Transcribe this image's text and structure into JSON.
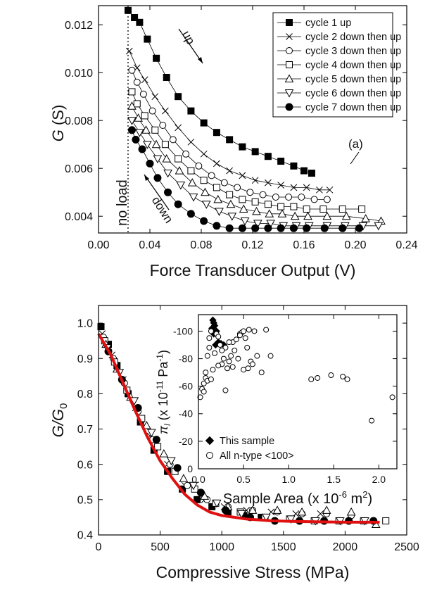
{
  "chart_data": [
    {
      "type": "scatter",
      "panel_label": "(a)",
      "xlabel": "Force Transducer Output (V)",
      "ylabel_main": "G",
      "ylabel_unit": " (S)",
      "xlim": [
        0.0,
        0.24
      ],
      "ylim": [
        0.0033,
        0.0128
      ],
      "xticks": [
        "0.00",
        "0.04",
        "0.08",
        "0.12",
        "0.16",
        "0.20",
        "0.24"
      ],
      "yticks": [
        "0.004",
        "0.006",
        "0.008",
        "0.010",
        "0.012"
      ],
      "xtick_values": [
        0.0,
        0.04,
        0.08,
        0.12,
        0.16,
        0.2,
        0.24
      ],
      "ytick_values": [
        0.004,
        0.006,
        0.008,
        0.01,
        0.012
      ],
      "annotations": {
        "up": "up",
        "down": "down",
        "no_load": "no load"
      },
      "no_load_x": 0.023,
      "legend": "top-right",
      "series": [
        {
          "name": "cycle 1 up",
          "marker": "square-filled",
          "x": [
            0.023,
            0.028,
            0.032,
            0.038,
            0.045,
            0.053,
            0.062,
            0.072,
            0.082,
            0.092,
            0.102,
            0.112,
            0.122,
            0.132,
            0.142,
            0.152,
            0.16,
            0.166
          ],
          "y": [
            0.0126,
            0.0123,
            0.0121,
            0.0114,
            0.0106,
            0.0098,
            0.009,
            0.0084,
            0.0079,
            0.0075,
            0.0072,
            0.0069,
            0.0067,
            0.0065,
            0.0063,
            0.0061,
            0.0059,
            0.0058
          ]
        },
        {
          "name": "cycle 2 down then up",
          "marker": "x",
          "x": [
            0.024,
            0.03,
            0.036,
            0.044,
            0.052,
            0.062,
            0.072,
            0.082,
            0.092,
            0.102,
            0.112,
            0.122,
            0.132,
            0.142,
            0.152,
            0.162,
            0.172,
            0.18
          ],
          "y": [
            0.0109,
            0.0102,
            0.0097,
            0.009,
            0.0084,
            0.0077,
            0.0071,
            0.0066,
            0.0062,
            0.0059,
            0.0057,
            0.0055,
            0.0054,
            0.0053,
            0.0052,
            0.0052,
            0.0051,
            0.0051
          ]
        },
        {
          "name": "cycle 3 down then up",
          "marker": "circle-open",
          "x": [
            0.026,
            0.03,
            0.035,
            0.042,
            0.05,
            0.058,
            0.068,
            0.078,
            0.088,
            0.098,
            0.108,
            0.118,
            0.128,
            0.138,
            0.148,
            0.158,
            0.168,
            0.178
          ],
          "y": [
            0.0101,
            0.0096,
            0.0091,
            0.0084,
            0.0078,
            0.0072,
            0.0066,
            0.0061,
            0.0057,
            0.0054,
            0.0052,
            0.005,
            0.0049,
            0.0048,
            0.0048,
            0.0048,
            0.0047,
            0.0047
          ]
        },
        {
          "name": "cycle 4 down then up",
          "marker": "square-open",
          "x": [
            0.026,
            0.03,
            0.036,
            0.044,
            0.052,
            0.062,
            0.072,
            0.082,
            0.092,
            0.102,
            0.112,
            0.122,
            0.132,
            0.142,
            0.152,
            0.162,
            0.175,
            0.19,
            0.205
          ],
          "y": [
            0.0092,
            0.0087,
            0.0082,
            0.0076,
            0.007,
            0.0064,
            0.0059,
            0.0055,
            0.0052,
            0.0049,
            0.0047,
            0.0046,
            0.0045,
            0.0044,
            0.0044,
            0.0043,
            0.0043,
            0.0043,
            0.0043
          ]
        },
        {
          "name": "cycle 5 down then up",
          "marker": "triangle-up-open",
          "x": [
            0.026,
            0.031,
            0.037,
            0.045,
            0.053,
            0.063,
            0.073,
            0.083,
            0.093,
            0.103,
            0.113,
            0.123,
            0.133,
            0.143,
            0.153,
            0.163,
            0.178,
            0.193,
            0.208,
            0.22
          ],
          "y": [
            0.0086,
            0.0081,
            0.0076,
            0.007,
            0.0064,
            0.0059,
            0.0054,
            0.005,
            0.0047,
            0.0045,
            0.0043,
            0.0042,
            0.0041,
            0.0041,
            0.004,
            0.004,
            0.004,
            0.004,
            0.0039,
            0.0038
          ]
        },
        {
          "name": "cycle 6 down then up",
          "marker": "triangle-down-open",
          "x": [
            0.026,
            0.032,
            0.038,
            0.046,
            0.054,
            0.064,
            0.074,
            0.084,
            0.094,
            0.104,
            0.114,
            0.124,
            0.134,
            0.144,
            0.154,
            0.164,
            0.178,
            0.192,
            0.206,
            0.218
          ],
          "y": [
            0.008,
            0.0075,
            0.007,
            0.0064,
            0.0058,
            0.0053,
            0.0048,
            0.0045,
            0.0042,
            0.004,
            0.0038,
            0.0037,
            0.0037,
            0.0036,
            0.0036,
            0.0036,
            0.0036,
            0.0036,
            0.0036,
            0.0036
          ]
        },
        {
          "name": "cycle 7 down then up",
          "marker": "circle-filled",
          "x": [
            0.026,
            0.029,
            0.034,
            0.04,
            0.046,
            0.054,
            0.062,
            0.072,
            0.082,
            0.092,
            0.102,
            0.112,
            0.122,
            0.132,
            0.142,
            0.152,
            0.162,
            0.176,
            0.19,
            0.203
          ],
          "y": [
            0.0076,
            0.0072,
            0.0068,
            0.0062,
            0.0056,
            0.005,
            0.0045,
            0.0041,
            0.0038,
            0.0036,
            0.0035,
            0.0035,
            0.0035,
            0.0035,
            0.0035,
            0.0035,
            0.0035,
            0.0035,
            0.0035,
            0.0035
          ]
        }
      ]
    },
    {
      "type": "scatter",
      "xlabel": "Compressive Stress (MPa)",
      "ylabel_main": "G/G",
      "ylabel_sub": "0",
      "xlim": [
        0,
        2500
      ],
      "ylim": [
        0.4,
        1.05
      ],
      "xticks": [
        "0",
        "500",
        "1000",
        "1500",
        "2000",
        "2500"
      ],
      "yticks": [
        "0.4",
        "0.5",
        "0.6",
        "0.7",
        "0.8",
        "0.9",
        "1.0"
      ],
      "xtick_values": [
        0,
        500,
        1000,
        1500,
        2000,
        2500
      ],
      "ytick_values": [
        0.4,
        0.5,
        0.6,
        0.7,
        0.8,
        0.9,
        1.0
      ],
      "fit": {
        "name": "fit",
        "color": "#e01010",
        "x": [
          0,
          100,
          200,
          300,
          400,
          500,
          600,
          700,
          800,
          900,
          1000,
          1200,
          1400,
          1600,
          1800,
          2000,
          2280
        ],
        "y": [
          0.97,
          0.91,
          0.83,
          0.75,
          0.675,
          0.61,
          0.56,
          0.515,
          0.485,
          0.465,
          0.455,
          0.445,
          0.44,
          0.438,
          0.437,
          0.436,
          0.436
        ]
      },
      "series": [
        {
          "name": "cycle 1 up",
          "marker": "square-filled",
          "x": [
            20,
            80,
            150,
            240,
            340,
            450,
            560,
            680,
            800,
            920,
            1050,
            1180,
            1320
          ],
          "y": [
            0.99,
            0.94,
            0.88,
            0.8,
            0.72,
            0.64,
            0.58,
            0.53,
            0.5,
            0.48,
            0.465,
            0.455,
            0.45
          ]
        },
        {
          "name": "cycle 2 down then up",
          "marker": "x",
          "x": [
            30,
            110,
            200,
            300,
            420,
            560,
            700,
            860,
            1020,
            1200,
            1400,
            1600,
            1800
          ],
          "y": [
            0.97,
            0.91,
            0.84,
            0.76,
            0.68,
            0.6,
            0.54,
            0.5,
            0.48,
            0.47,
            0.465,
            0.46,
            0.46
          ]
        },
        {
          "name": "cycle 3 down then up",
          "marker": "circle-open",
          "x": [
            40,
            120,
            210,
            320,
            440,
            580,
            720,
            880,
            1050,
            1250,
            1450,
            1650,
            1850,
            2050
          ],
          "y": [
            0.96,
            0.9,
            0.83,
            0.75,
            0.67,
            0.6,
            0.54,
            0.5,
            0.48,
            0.47,
            0.465,
            0.46,
            0.46,
            0.455
          ]
        },
        {
          "name": "cycle 4 down then up",
          "marker": "square-open",
          "x": [
            50,
            130,
            230,
            350,
            480,
            620,
            780,
            950,
            1150,
            1350,
            1550,
            1750,
            1950,
            2150,
            2330
          ],
          "y": [
            0.95,
            0.89,
            0.81,
            0.73,
            0.65,
            0.58,
            0.53,
            0.49,
            0.465,
            0.45,
            0.445,
            0.44,
            0.44,
            0.44,
            0.44
          ]
        },
        {
          "name": "cycle 5 down then up",
          "marker": "triangle-up-open",
          "x": [
            60,
            150,
            260,
            390,
            530,
            690,
            860,
            1050,
            1250,
            1450,
            1650,
            1850,
            2050,
            2250
          ],
          "y": [
            0.94,
            0.87,
            0.79,
            0.71,
            0.63,
            0.56,
            0.51,
            0.48,
            0.47,
            0.47,
            0.465,
            0.47,
            0.465,
            0.43
          ]
        },
        {
          "name": "cycle 6 down then up",
          "marker": "triangle-down-open",
          "x": [
            70,
            170,
            290,
            430,
            590,
            770,
            960,
            1160,
            1360,
            1560,
            1760,
            1960,
            2160
          ],
          "y": [
            0.93,
            0.86,
            0.78,
            0.69,
            0.61,
            0.54,
            0.49,
            0.46,
            0.45,
            0.445,
            0.44,
            0.44,
            0.44
          ]
        },
        {
          "name": "cycle 7 down then up",
          "marker": "circle-filled",
          "x": [
            80,
            190,
            320,
            470,
            640,
            830,
            1030,
            1230,
            1430,
            1630,
            1830,
            2030,
            2230
          ],
          "y": [
            0.92,
            0.84,
            0.76,
            0.67,
            0.59,
            0.52,
            0.47,
            0.45,
            0.44,
            0.44,
            0.44,
            0.44,
            0.44
          ]
        }
      ]
    },
    {
      "type": "scatter",
      "inset": true,
      "xlabel_main": "Sample Area (x 10",
      "xlabel_sup": "-6",
      "xlabel_end": " m",
      "xlabel_sup2": "2",
      "xlabel_close": ")",
      "ylabel_main": "π",
      "ylabel_sub": "l",
      "ylabel_mid": " (x 10",
      "ylabel_sup": "-11",
      "ylabel_end": " Pa",
      "ylabel_sup2": "-1",
      "ylabel_close": ")",
      "xlim": [
        0.0,
        2.2
      ],
      "ylim": [
        0,
        -112
      ],
      "xticks": [
        "0.0",
        "0.5",
        "1.0",
        "1.5",
        "2.0"
      ],
      "yticks": [
        "0",
        "-20",
        "-40",
        "-60",
        "-80",
        "-100"
      ],
      "xtick_values": [
        0.0,
        0.5,
        1.0,
        1.5,
        2.0
      ],
      "ytick_values": [
        0,
        -20,
        -40,
        -60,
        -80,
        -100
      ],
      "legend": "bottom-left",
      "series": [
        {
          "name": "This sample",
          "marker": "diamond-filled",
          "x": [
            0.16,
            0.17,
            0.18,
            0.15,
            0.2,
            0.17,
            0.22,
            0.19,
            0.25,
            0.28
          ],
          "y": [
            -108,
            -106,
            -104,
            -102,
            -100,
            -98,
            -92,
            -90,
            -91,
            -90
          ]
        },
        {
          "name": "All n-type <100>",
          "marker": "circle-open",
          "x": [
            0.02,
            0.04,
            0.06,
            0.08,
            0.1,
            0.12,
            0.12,
            0.14,
            0.16,
            0.18,
            0.2,
            0.22,
            0.24,
            0.26,
            0.28,
            0.3,
            0.32,
            0.34,
            0.36,
            0.38,
            0.4,
            0.42,
            0.44,
            0.46,
            0.48,
            0.5,
            0.52,
            0.54,
            0.56,
            0.58,
            0.6,
            0.62,
            0.65,
            0.7,
            0.75,
            0.8,
            0.1,
            0.08,
            0.14,
            0.22,
            0.3,
            0.38,
            0.46,
            0.06,
            0.26,
            0.34,
            0.5,
            0.55,
            1.25,
            1.32,
            1.47,
            1.6,
            1.65,
            1.92,
            2.15
          ],
          "y": [
            -52,
            -58,
            -62,
            -66,
            -82,
            -88,
            -95,
            -100,
            -72,
            -84,
            -98,
            -96,
            -90,
            -76,
            -80,
            -88,
            -73,
            -78,
            -82,
            -92,
            -86,
            -94,
            -80,
            -98,
            -99,
            -100,
            -95,
            -88,
            -101,
            -78,
            -76,
            -100,
            -82,
            -70,
            -101,
            -82,
            -64,
            -70,
            -65,
            -75,
            -57,
            -74,
            -97,
            -56,
            -86,
            -92,
            -72,
            -73,
            -65,
            -66,
            -68,
            -67,
            -65,
            -35,
            -52
          ]
        }
      ]
    }
  ]
}
